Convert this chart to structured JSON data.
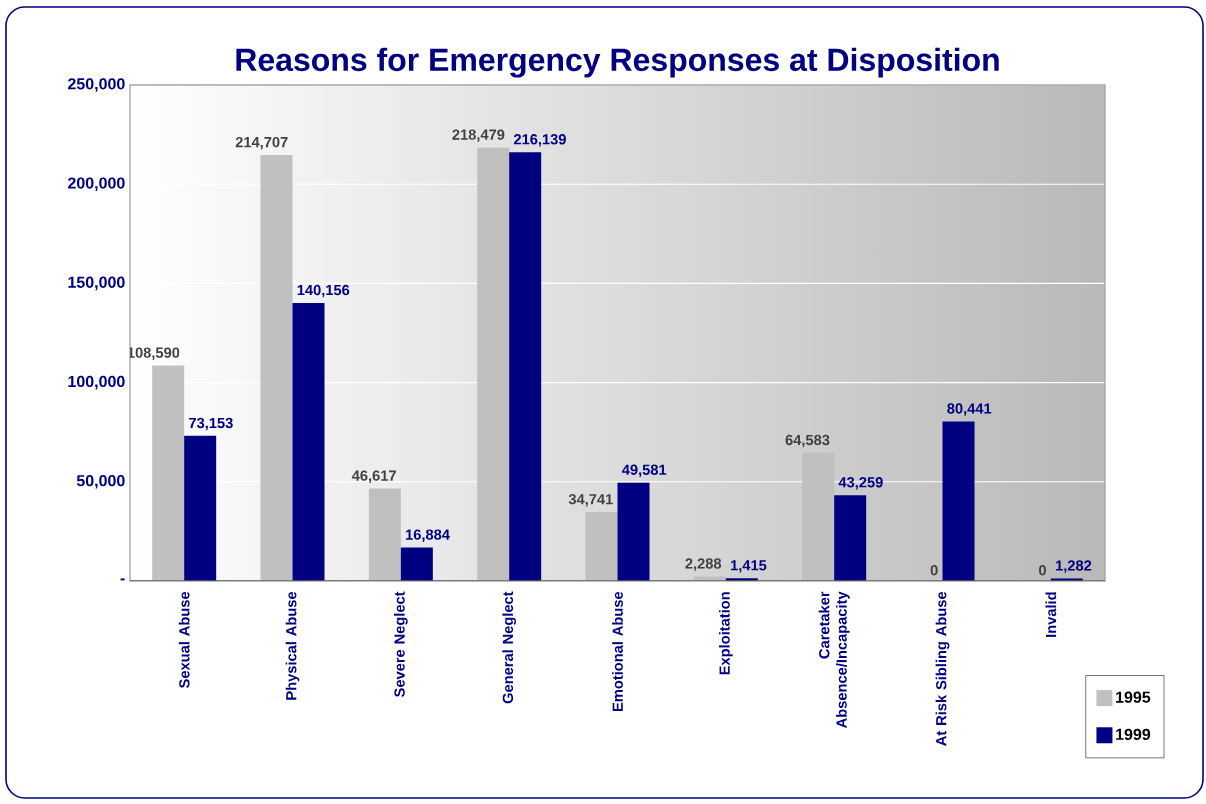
{
  "chart_data": {
    "type": "bar",
    "title": "Reasons for Emergency Responses at Disposition",
    "categories": [
      "Sexual Abuse",
      "Physical Abuse",
      "Severe Neglect",
      "General Neglect",
      "Emotional Abuse",
      "Exploitation",
      "Caretaker Absence/Incapacity",
      "At Risk Sibling Abuse",
      "Invalid"
    ],
    "series": [
      {
        "name": "1995",
        "color": "#c0c0c0",
        "values": [
          108590,
          214707,
          46617,
          218479,
          34741,
          2288,
          64583,
          0,
          0
        ],
        "value_labels": [
          "108,590",
          "214,707",
          "46,617",
          "218,479",
          "34,741",
          "2,288",
          "64,583",
          "0",
          "0"
        ]
      },
      {
        "name": "1999",
        "color": "#000080",
        "values": [
          73153,
          140156,
          16884,
          216139,
          49581,
          1415,
          43259,
          80441,
          1282
        ],
        "value_labels": [
          "73,153",
          "140,156",
          "16,884",
          "216,139",
          "49,581",
          "1,415",
          "43,259",
          "80,441",
          "1,282"
        ]
      }
    ],
    "ylim": [
      0,
      250000
    ],
    "yticks": [
      {
        "value": 0,
        "label": "-"
      },
      {
        "value": 50000,
        "label": "50,000"
      },
      {
        "value": 100000,
        "label": "100,000"
      },
      {
        "value": 150000,
        "label": "150,000"
      },
      {
        "value": 200000,
        "label": "200,000"
      },
      {
        "value": 250000,
        "label": "250,000"
      }
    ],
    "grid": "y",
    "legend": "bottom right"
  }
}
